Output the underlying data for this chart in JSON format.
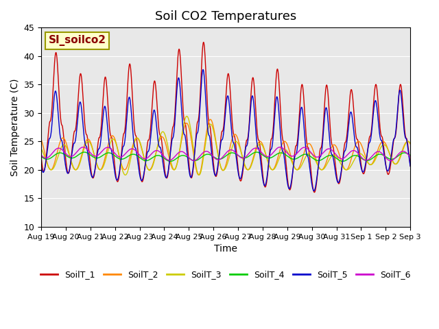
{
  "title": "Soil CO2 Temperatures",
  "xlabel": "Time",
  "ylabel": "Soil Temperature (C)",
  "ylim": [
    10,
    45
  ],
  "annotation_text": "SI_soilco2",
  "legend_labels": [
    "SoilT_1",
    "SoilT_2",
    "SoilT_3",
    "SoilT_4",
    "SoilT_5",
    "SoilT_6"
  ],
  "colors": [
    "#cc0000",
    "#ff8800",
    "#cccc00",
    "#00cc00",
    "#0000cc",
    "#cc00cc"
  ],
  "bg_color": "#e8e8e8",
  "x_tick_labels": [
    "Aug 19",
    "Aug 20",
    "Aug 21",
    "Aug 22",
    "Aug 23",
    "Aug 24",
    "Aug 25",
    "Aug 26",
    "Aug 27",
    "Aug 28",
    "Aug 29",
    "Aug 30",
    "Aug 31",
    "Sep 1",
    "Sep 2",
    "Sep 3"
  ],
  "x_tick_positions": [
    0,
    1,
    2,
    3,
    4,
    5,
    6,
    7,
    8,
    9,
    10,
    11,
    12,
    13,
    14,
    15
  ]
}
